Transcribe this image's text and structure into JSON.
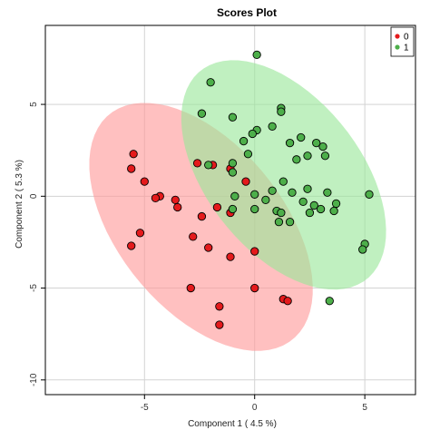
{
  "chart_data": {
    "type": "scatter",
    "title": "Scores Plot",
    "xlabel": "Component 1 ( 4.5 %)",
    "ylabel": "Component 2 ( 5.3 %)",
    "xlim": [
      -9.5,
      7.3
    ],
    "ylim": [
      -10.8,
      9.3
    ],
    "xticks": [
      -5,
      0,
      5
    ],
    "yticks": [
      -10,
      -5,
      0,
      5
    ],
    "grid": true,
    "legend_position": "top-right",
    "ellipses": true,
    "series": [
      {
        "name": "0",
        "color": "#e41a1c",
        "ellipse_color": "#ff9999",
        "points": [
          [
            -5.5,
            2.3
          ],
          [
            -5.6,
            1.5
          ],
          [
            -5.0,
            0.8
          ],
          [
            -4.3,
            0.0
          ],
          [
            -4.5,
            -0.1
          ],
          [
            -3.6,
            -0.2
          ],
          [
            -3.5,
            -0.6
          ],
          [
            -5.2,
            -2.0
          ],
          [
            -5.6,
            -2.7
          ],
          [
            -2.6,
            1.8
          ],
          [
            -1.9,
            1.7
          ],
          [
            -1.1,
            1.5
          ],
          [
            -0.4,
            0.8
          ],
          [
            -2.4,
            -1.1
          ],
          [
            -1.7,
            -0.6
          ],
          [
            -1.1,
            -0.9
          ],
          [
            -2.8,
            -2.2
          ],
          [
            -2.1,
            -2.8
          ],
          [
            -1.1,
            -3.3
          ],
          [
            0.0,
            -3.0
          ],
          [
            -2.9,
            -5.0
          ],
          [
            0.0,
            -5.0
          ],
          [
            -1.6,
            -6.0
          ],
          [
            -1.6,
            -7.0
          ],
          [
            1.3,
            -5.6
          ],
          [
            1.5,
            -5.7
          ]
        ]
      },
      {
        "name": "1",
        "color": "#4daf4a",
        "ellipse_color": "#99e699",
        "points": [
          [
            0.1,
            7.7
          ],
          [
            -2.0,
            6.2
          ],
          [
            -2.4,
            4.5
          ],
          [
            -1.0,
            4.3
          ],
          [
            1.2,
            4.8
          ],
          [
            1.2,
            4.6
          ],
          [
            0.1,
            3.6
          ],
          [
            -0.1,
            3.4
          ],
          [
            -0.5,
            3.0
          ],
          [
            0.8,
            3.8
          ],
          [
            2.1,
            3.2
          ],
          [
            1.6,
            2.9
          ],
          [
            2.8,
            2.9
          ],
          [
            3.1,
            2.7
          ],
          [
            3.2,
            2.2
          ],
          [
            2.4,
            2.2
          ],
          [
            1.9,
            2.0
          ],
          [
            -0.3,
            2.3
          ],
          [
            -1.0,
            1.8
          ],
          [
            -1.0,
            1.3
          ],
          [
            -2.1,
            1.7
          ],
          [
            1.3,
            0.8
          ],
          [
            0.8,
            0.3
          ],
          [
            1.7,
            0.2
          ],
          [
            2.4,
            0.4
          ],
          [
            3.3,
            0.2
          ],
          [
            -0.9,
            0.0
          ],
          [
            0.0,
            0.1
          ],
          [
            0.5,
            -0.2
          ],
          [
            2.2,
            -0.3
          ],
          [
            2.7,
            -0.5
          ],
          [
            2.5,
            -0.9
          ],
          [
            3.0,
            -0.7
          ],
          [
            3.7,
            -0.4
          ],
          [
            5.2,
            0.1
          ],
          [
            3.6,
            -0.8
          ],
          [
            -1.0,
            -0.7
          ],
          [
            0.0,
            -0.7
          ],
          [
            1.0,
            -0.8
          ],
          [
            1.2,
            -0.9
          ],
          [
            1.6,
            -1.4
          ],
          [
            1.1,
            -1.4
          ],
          [
            5.0,
            -2.6
          ],
          [
            4.9,
            -2.9
          ],
          [
            3.4,
            -5.7
          ]
        ]
      }
    ]
  }
}
